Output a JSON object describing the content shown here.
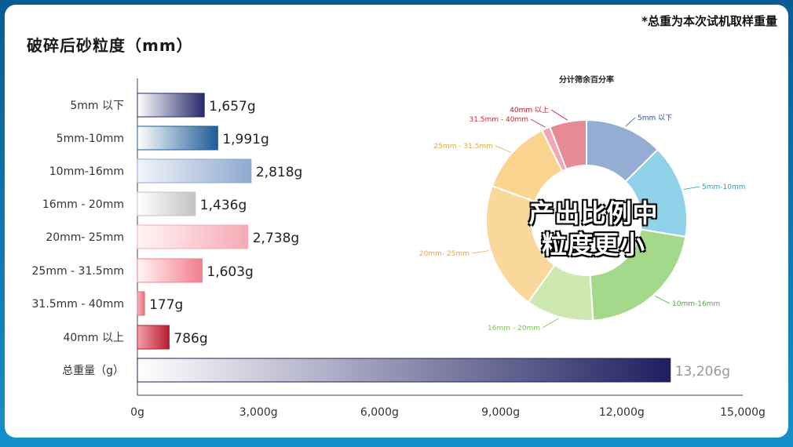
{
  "header": {
    "title": "破碎后砂粒度（mm）",
    "note": "*总重为本次试机取样重量"
  },
  "overlay_text": [
    "产出比例中",
    "粒度更小"
  ],
  "chart_data": [
    {
      "type": "bar",
      "orientation": "horizontal",
      "title": "破碎后砂粒度（mm）",
      "categories": [
        "5mm 以下",
        "5mm-10mm",
        "10mm-16mm",
        "16mm - 20mm",
        "20mm- 25mm",
        "25mm - 31.5mm",
        "31.5mm - 40mm",
        "40mm 以上",
        "总重量（g）"
      ],
      "values": [
        1657,
        1991,
        2818,
        1436,
        2738,
        1603,
        177,
        786,
        13206
      ],
      "value_labels": [
        "1,657g",
        "1,991g",
        "2,818g",
        "1,436g",
        "2,738g",
        "1,603g",
        "177g",
        "786g",
        "13,206g"
      ],
      "xlim": [
        0,
        15000
      ],
      "xticks": [
        "0g",
        "3,000g",
        "6,000g",
        "9,000g",
        "12,000g",
        "15,000g"
      ],
      "grid": false,
      "colors": [
        [
          "#ffffff",
          "#26296b"
        ],
        [
          "#ffffff",
          "#1d5b96"
        ],
        [
          "#f2f5fa",
          "#8fa8cf"
        ],
        [
          "#ffffff",
          "#c2c2c2"
        ],
        [
          "#fff5f6",
          "#f6aab3"
        ],
        [
          "#fff5f6",
          "#f27d8b"
        ],
        [
          "#f9b6bf",
          "#e26f7c"
        ],
        [
          "#f2a0ab",
          "#b81c2e"
        ],
        [
          "#ffffff",
          "#1f1f60"
        ]
      ],
      "total_label_color": "#999999"
    },
    {
      "type": "pie",
      "variant": "donut",
      "title": "分计筛余百分率",
      "labels": [
        "5mm 以下",
        "5mm-10mm",
        "10mm-16mm",
        "16mm - 20mm",
        "20mm- 25mm",
        "25mm - 31.5mm",
        "31.5mm - 40mm",
        "40mm 以上"
      ],
      "values": [
        1657,
        1991,
        2818,
        1436,
        2738,
        1603,
        177,
        786
      ],
      "colors": [
        "#94aed3",
        "#8fd2ea",
        "#a4d98b",
        "#cfe8b2",
        "#fad79b",
        "#fbd58f",
        "#f2a7b1",
        "#e68a96"
      ],
      "label_colors": [
        "#2c4f9e",
        "#2b9bbd",
        "#4cae3b",
        "#7ec24f",
        "#e9a73a",
        "#e9a73a",
        "#d0283e",
        "#c8102e"
      ]
    }
  ]
}
